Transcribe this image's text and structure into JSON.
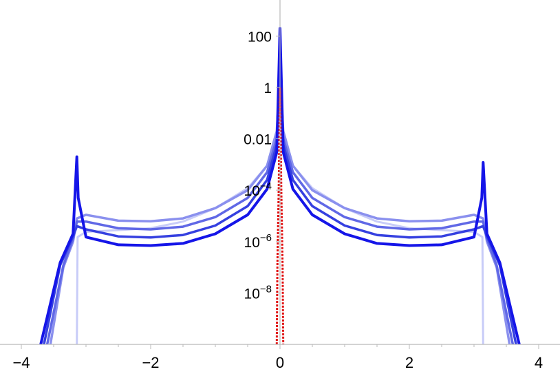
{
  "chart_data": {
    "type": "line",
    "title": "",
    "xlabel": "",
    "ylabel": "",
    "yscale": "log",
    "xlim": [
      -4.2,
      4.2
    ],
    "ylim": [
      1e-10,
      1000
    ],
    "grid": false,
    "x_ticks": [
      {
        "value": -4,
        "label": "−4"
      },
      {
        "value": -2,
        "label": "−2"
      },
      {
        "value": 0,
        "label": "0"
      },
      {
        "value": 2,
        "label": "2"
      },
      {
        "value": 4,
        "label": "4"
      }
    ],
    "y_ticks": [
      {
        "value": 100,
        "label": "100",
        "base": "",
        "exp": ""
      },
      {
        "value": 1,
        "label": "1",
        "base": "",
        "exp": ""
      },
      {
        "value": 0.01,
        "label": "0.01",
        "base": "",
        "exp": ""
      },
      {
        "value": 0.0001,
        "label": "",
        "base": "10",
        "exp": "−4"
      },
      {
        "value": 1e-06,
        "label": "",
        "base": "10",
        "exp": "−6"
      },
      {
        "value": 1e-08,
        "label": "",
        "base": "10",
        "exp": "−8"
      }
    ],
    "series": [
      {
        "color": "#c8ccf8",
        "stroke_width": 3,
        "points": [
          [
            -3.1416,
            1e-10
          ],
          [
            -3.13,
            1.5e-06
          ],
          [
            -3.0,
            2.4e-06
          ],
          [
            -2.5,
            2.8e-06
          ],
          [
            -2.0,
            3.3e-06
          ],
          [
            -1.5,
            6e-06
          ],
          [
            -1.0,
            2e-05
          ],
          [
            -0.5,
            0.00012
          ],
          [
            -0.2,
            0.0009
          ],
          [
            -0.05,
            0.02
          ],
          [
            0,
            1
          ],
          [
            0.05,
            0.02
          ],
          [
            0.2,
            0.0009
          ],
          [
            0.5,
            0.00012
          ],
          [
            1.0,
            2e-05
          ],
          [
            1.5,
            6e-06
          ],
          [
            2.0,
            3.3e-06
          ],
          [
            2.5,
            2.8e-06
          ],
          [
            3.0,
            2.4e-06
          ],
          [
            3.13,
            1.5e-06
          ],
          [
            3.1416,
            1e-10
          ]
        ]
      },
      {
        "color": "#8a90ee",
        "stroke_width": 3.5,
        "points": [
          [
            -3.55,
            1e-10
          ],
          [
            -3.35,
            1e-07
          ],
          [
            -3.2,
            1e-06
          ],
          [
            -3.14,
            8e-06
          ],
          [
            -3.0,
            1.1e-05
          ],
          [
            -2.5,
            6.5e-06
          ],
          [
            -2.0,
            6.2e-06
          ],
          [
            -1.5,
            8e-06
          ],
          [
            -1.0,
            2e-05
          ],
          [
            -0.5,
            0.0001
          ],
          [
            -0.2,
            0.0009
          ],
          [
            -0.05,
            0.02
          ],
          [
            0,
            3
          ],
          [
            0.05,
            0.02
          ],
          [
            0.2,
            0.0009
          ],
          [
            0.5,
            0.0001
          ],
          [
            1.0,
            2e-05
          ],
          [
            1.5,
            8e-06
          ],
          [
            2.0,
            6.2e-06
          ],
          [
            2.5,
            6.5e-06
          ],
          [
            3.0,
            1.1e-05
          ],
          [
            3.14,
            8e-06
          ],
          [
            3.2,
            1e-06
          ],
          [
            3.35,
            1e-07
          ],
          [
            3.55,
            1e-10
          ]
        ]
      },
      {
        "color": "#6068e6",
        "stroke_width": 3.5,
        "points": [
          [
            -3.6,
            1e-10
          ],
          [
            -3.35,
            1.2e-07
          ],
          [
            -3.2,
            1.3e-06
          ],
          [
            -3.14,
            6e-06
          ],
          [
            -3.0,
            6e-06
          ],
          [
            -2.5,
            3.3e-06
          ],
          [
            -2.0,
            3e-06
          ],
          [
            -1.5,
            3.8e-06
          ],
          [
            -1.0,
            9e-06
          ],
          [
            -0.5,
            5e-05
          ],
          [
            -0.2,
            0.0005
          ],
          [
            -0.05,
            0.01
          ],
          [
            0,
            10
          ],
          [
            0.05,
            0.01
          ],
          [
            0.2,
            0.0005
          ],
          [
            0.5,
            5e-05
          ],
          [
            1.0,
            9e-06
          ],
          [
            1.5,
            3.8e-06
          ],
          [
            2.0,
            3e-06
          ],
          [
            2.5,
            3.3e-06
          ],
          [
            3.0,
            6e-06
          ],
          [
            3.14,
            6e-06
          ],
          [
            3.2,
            1.3e-06
          ],
          [
            3.35,
            1.2e-07
          ],
          [
            3.6,
            1e-10
          ]
        ]
      },
      {
        "color": "#3540e0",
        "stroke_width": 3.5,
        "points": [
          [
            -3.65,
            1e-10
          ],
          [
            -3.4,
            1.2e-07
          ],
          [
            -3.2,
            1.6e-06
          ],
          [
            -3.14,
            4e-06
          ],
          [
            -3.0,
            3e-06
          ],
          [
            -2.5,
            1.6e-06
          ],
          [
            -2.0,
            1.45e-06
          ],
          [
            -1.5,
            1.8e-06
          ],
          [
            -1.0,
            4.2e-06
          ],
          [
            -0.5,
            2.4e-05
          ],
          [
            -0.2,
            0.00025
          ],
          [
            -0.05,
            0.006
          ],
          [
            0,
            40
          ],
          [
            0.05,
            0.006
          ],
          [
            0.2,
            0.00025
          ],
          [
            0.5,
            2.4e-05
          ],
          [
            1.0,
            4.2e-06
          ],
          [
            1.5,
            1.8e-06
          ],
          [
            2.0,
            1.45e-06
          ],
          [
            2.5,
            1.6e-06
          ],
          [
            3.0,
            3e-06
          ],
          [
            3.14,
            4e-06
          ],
          [
            3.2,
            1.6e-06
          ],
          [
            3.4,
            1.2e-07
          ],
          [
            3.65,
            1e-10
          ]
        ]
      },
      {
        "color": "#1515e8",
        "stroke_width": 4,
        "points": [
          [
            -3.7,
            1e-10
          ],
          [
            -3.4,
            1.5e-07
          ],
          [
            -3.2,
            2e-06
          ],
          [
            -3.141,
            0.002
          ],
          [
            -3.12,
            5e-05
          ],
          [
            -3.0,
            1.5e-06
          ],
          [
            -2.5,
            7.5e-07
          ],
          [
            -2.0,
            7e-07
          ],
          [
            -1.5,
            8.5e-07
          ],
          [
            -1.0,
            2e-06
          ],
          [
            -0.5,
            1.1e-05
          ],
          [
            -0.2,
            0.00011
          ],
          [
            -0.05,
            0.003
          ],
          [
            0,
            200
          ],
          [
            0.05,
            0.003
          ],
          [
            0.2,
            0.00011
          ],
          [
            0.5,
            1.1e-05
          ],
          [
            1.0,
            2e-06
          ],
          [
            1.5,
            8.5e-07
          ],
          [
            2.0,
            7e-07
          ],
          [
            2.5,
            7.5e-07
          ],
          [
            3.0,
            1.5e-06
          ],
          [
            3.12,
            5e-05
          ],
          [
            3.141,
            0.0012
          ],
          [
            3.2,
            2e-06
          ],
          [
            3.4,
            1.5e-07
          ],
          [
            3.7,
            1e-10
          ]
        ]
      }
    ],
    "red_series": {
      "color": "#e01010",
      "stroke_width": 3,
      "dashed": true,
      "points": [
        [
          -0.05,
          1e-10
        ],
        [
          -0.04,
          1e-07
        ],
        [
          -0.02,
          0.0001
        ],
        [
          0,
          1
        ],
        [
          0.02,
          0.0001
        ],
        [
          0.04,
          1e-07
        ],
        [
          0.05,
          1e-10
        ]
      ]
    }
  }
}
